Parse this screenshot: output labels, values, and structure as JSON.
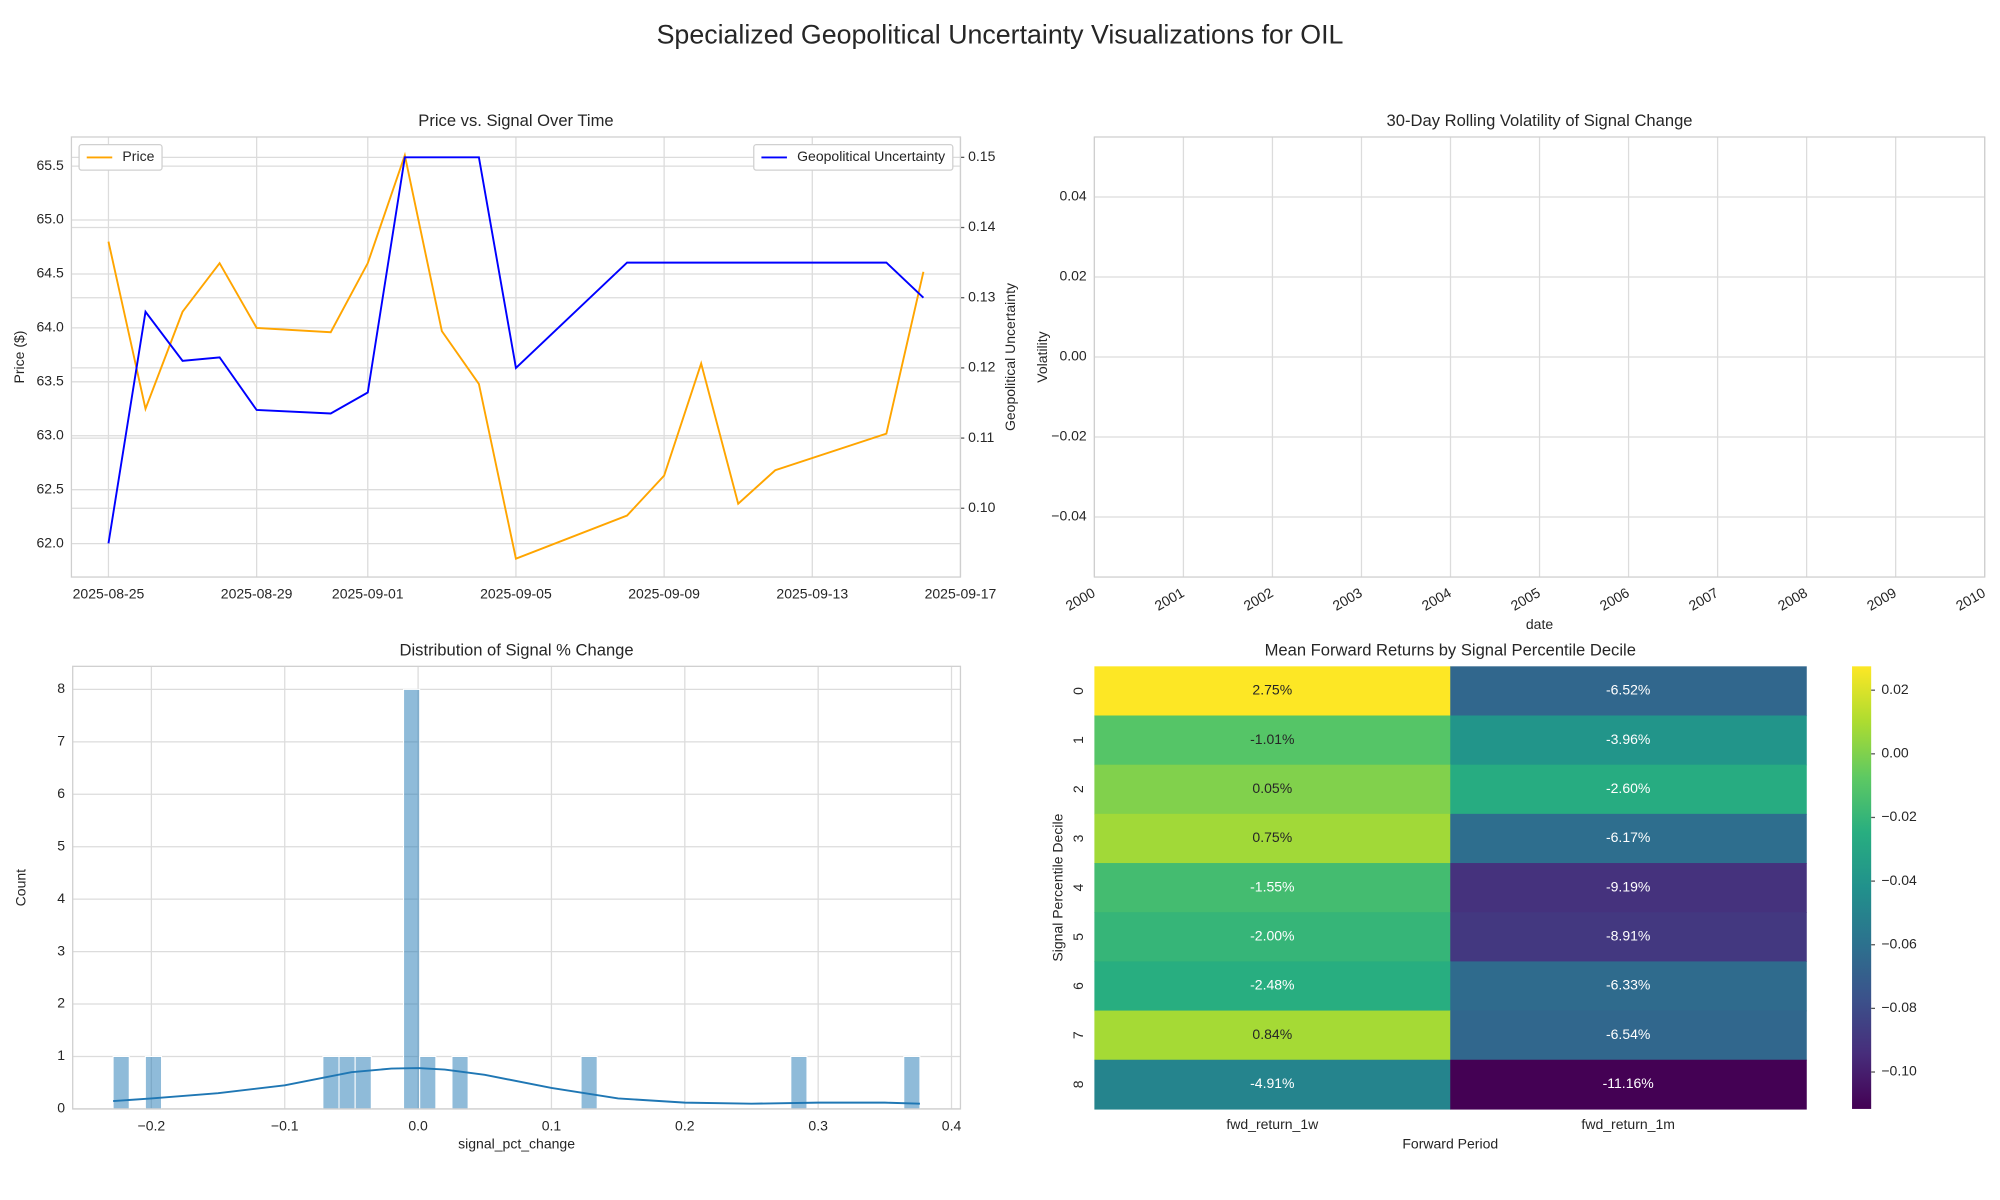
{
  "title": "Specialized Geopolitical Uncertainty Visualizations for OIL",
  "chart_data": [
    {
      "type": "line",
      "title": "Price vs. Signal Over Time",
      "ylabel": "Price ($)",
      "y2label": "Geopolitical Uncertainty",
      "x": [
        "2025-08-25",
        "2025-08-26",
        "2025-08-27",
        "2025-08-28",
        "2025-08-29",
        "2025-08-31",
        "2025-09-01",
        "2025-09-02",
        "2025-09-03",
        "2025-09-04",
        "2025-09-05",
        "2025-09-08",
        "2025-09-09",
        "2025-09-10",
        "2025-09-11",
        "2025-09-12",
        "2025-09-15",
        "2025-09-16"
      ],
      "series": [
        {
          "name": "Price",
          "color": "orange",
          "legend": "upper left",
          "values": [
            64.8,
            63.25,
            64.15,
            64.6,
            64.0,
            63.96,
            64.6,
            65.6,
            63.97,
            63.48,
            61.86,
            62.26,
            62.63,
            63.67,
            62.37,
            62.68,
            63.02,
            64.52
          ]
        },
        {
          "name": "Geopolitical Uncertainty",
          "color": "blue",
          "axis": "y2",
          "legend": "upper right",
          "values": [
            0.095,
            0.128,
            0.121,
            0.1215,
            0.114,
            0.1135,
            0.1165,
            0.15,
            0.15,
            0.15,
            0.12,
            0.135,
            0.135,
            0.135,
            0.135,
            0.135,
            0.135,
            0.13
          ]
        }
      ],
      "xlim": [
        "2025-08-24",
        "2025-09-17"
      ],
      "xticks": [
        "2025-08-25",
        "2025-08-29",
        "2025-09-01",
        "2025-09-05",
        "2025-09-09",
        "2025-09-13",
        "2025-09-17"
      ],
      "ylim": [
        61.69,
        65.77
      ],
      "yticks": [
        {
          "value": 62.0,
          "label": "62.0"
        },
        62.5,
        {
          "value": 63.0,
          "label": "63.0"
        },
        63.5,
        {
          "value": 64.0,
          "label": "64.0"
        },
        64.5,
        {
          "value": 65.0,
          "label": "65.0"
        },
        65.5
      ],
      "y2lim": [
        0.0902,
        0.1529
      ],
      "y2ticks": [
        {
          "value": 0.1,
          "label": "0.10"
        },
        0.11,
        0.12,
        0.13,
        0.14,
        0.15
      ],
      "grid": true
    },
    {
      "type": "line",
      "title": "30-Day Rolling Volatility of Signal Change",
      "xlabel": "date",
      "ylabel": "Volatility",
      "x": [],
      "series": [],
      "xlim": [
        2000,
        2010
      ],
      "xticks": [
        2000,
        2001,
        2002,
        2003,
        2004,
        2005,
        2006,
        2007,
        2008,
        2009,
        2010
      ],
      "xtick_rotation": 30,
      "ylim": [
        -0.055,
        0.055
      ],
      "yticks": [
        {
          "value": -0.04,
          "label": "−0.04"
        },
        {
          "value": -0.02,
          "label": "−0.02"
        },
        {
          "value": 0,
          "label": "0.00"
        },
        0.02,
        0.04
      ],
      "grid": true
    },
    {
      "type": "histogram",
      "title": "Distribution of Signal % Change",
      "xlabel": "signal_pct_change",
      "ylabel": "Count",
      "color": "#1f77b4",
      "bins": [
        -0.2287,
        -0.2166,
        -0.2045,
        -0.1924,
        -0.1803,
        -0.1682,
        -0.1561,
        -0.144,
        -0.1319,
        -0.1198,
        -0.1077,
        -0.0956,
        -0.0835,
        -0.0714,
        -0.0593,
        -0.0472,
        -0.0351,
        -0.023,
        -0.0109,
        0.0012,
        0.0133,
        0.0254,
        0.0375,
        0.0496,
        0.0617,
        0.0738,
        0.0859,
        0.098,
        0.1101,
        0.1222,
        0.1343,
        0.1464,
        0.1585,
        0.1706,
        0.1827,
        0.1948,
        0.2069,
        0.219,
        0.2311,
        0.2432,
        0.2553,
        0.2674,
        0.2795,
        0.2916,
        0.3037,
        0.3158,
        0.3279,
        0.34,
        0.3521,
        0.3642,
        0.3763
      ],
      "counts": [
        1,
        0,
        1,
        0,
        0,
        0,
        0,
        0,
        0,
        0,
        0,
        0,
        0,
        1,
        1,
        1,
        0,
        0,
        8,
        1,
        0,
        1,
        0,
        0,
        0,
        0,
        0,
        0,
        0,
        1,
        0,
        0,
        0,
        0,
        0,
        0,
        0,
        0,
        0,
        0,
        0,
        0,
        1,
        0,
        0,
        0,
        0,
        0,
        0,
        1
      ],
      "kde": {
        "color": "#1f77b4",
        "x": [
          -0.2287,
          -0.2,
          -0.15,
          -0.1,
          -0.05,
          -0.02,
          0.0,
          0.02,
          0.05,
          0.1,
          0.15,
          0.2,
          0.25,
          0.3,
          0.35,
          0.3763
        ],
        "values": [
          0.15,
          0.2,
          0.3,
          0.45,
          0.7,
          0.77,
          0.78,
          0.75,
          0.65,
          0.4,
          0.2,
          0.12,
          0.1,
          0.12,
          0.12,
          0.1
        ]
      },
      "xlim": [
        -0.259,
        0.4067
      ],
      "xticks": [
        {
          "value": -0.2,
          "label": "−0.2"
        },
        {
          "value": -0.1,
          "label": "−0.1"
        },
        {
          "value": 0,
          "label": "0.0"
        },
        0.1,
        0.2,
        0.3,
        0.4
      ],
      "ylim": [
        0,
        8.44
      ],
      "yticks": [
        0,
        1,
        2,
        3,
        4,
        5,
        6,
        7,
        8
      ],
      "grid": true
    },
    {
      "type": "heatmap",
      "title": "Mean Forward Returns by Signal Percentile Decile",
      "xlabel": "Forward Period",
      "ylabel": "Signal Percentile Decile",
      "colormap": "viridis",
      "columns": [
        "fwd_return_1w",
        "fwd_return_1m"
      ],
      "categories": [
        "0",
        "1",
        "2",
        "3",
        "4",
        "5",
        "6",
        "7",
        "8"
      ],
      "values": [
        [
          0.0275,
          -0.0652
        ],
        [
          -0.0101,
          -0.0396
        ],
        [
          0.0005,
          -0.026
        ],
        [
          0.0075,
          -0.0617
        ],
        [
          -0.0155,
          -0.0919
        ],
        [
          -0.02,
          -0.0891
        ],
        [
          -0.0248,
          -0.0633
        ],
        [
          0.0084,
          -0.0654
        ],
        [
          -0.0491,
          -0.1116
        ]
      ],
      "value_labels": [
        [
          "2.75%",
          "-6.52%"
        ],
        [
          "-1.01%",
          "-3.96%"
        ],
        [
          "0.05%",
          "-2.60%"
        ],
        [
          "0.75%",
          "-6.17%"
        ],
        [
          "-1.55%",
          "-9.19%"
        ],
        [
          "-2.00%",
          "-8.91%"
        ],
        [
          "-2.48%",
          "-6.33%"
        ],
        [
          "0.84%",
          "-6.54%"
        ],
        [
          "-4.91%",
          "-11.16%"
        ]
      ],
      "clim": [
        -0.1116,
        0.0275
      ],
      "cticks": [
        {
          "value": -0.1,
          "label": "−0.10"
        },
        {
          "value": -0.08,
          "label": "−0.08"
        },
        {
          "value": -0.06,
          "label": "−0.06"
        },
        {
          "value": -0.04,
          "label": "−0.04"
        },
        {
          "value": -0.02,
          "label": "−0.02"
        },
        {
          "value": 0,
          "label": "0.00"
        },
        0.02
      ]
    }
  ]
}
